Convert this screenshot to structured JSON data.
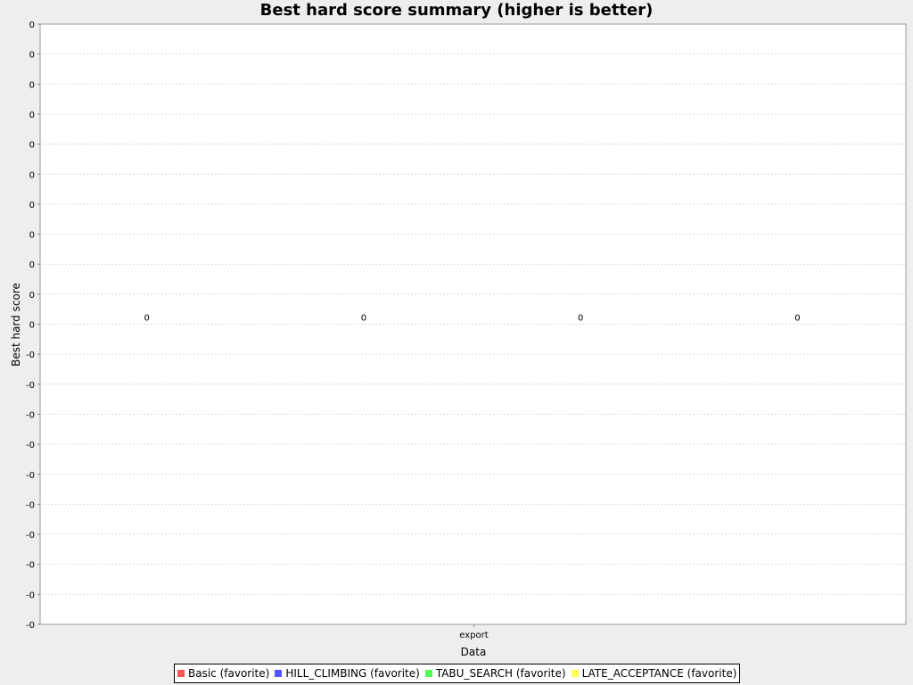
{
  "chart_data": {
    "type": "bar",
    "title": "Best hard score summary (higher is better)",
    "xlabel": "Data",
    "ylabel": "Best hard score",
    "categories": [
      "export"
    ],
    "series": [
      {
        "name": "Basic (favorite)",
        "values": [
          0
        ],
        "color": "#ff5555"
      },
      {
        "name": "HILL_CLIMBING (favorite)",
        "values": [
          0
        ],
        "color": "#5555ff"
      },
      {
        "name": "TABU_SEARCH (favorite)",
        "values": [
          0
        ],
        "color": "#55ff55"
      },
      {
        "name": "LATE_ACCEPTANCE (favorite)",
        "values": [
          0
        ],
        "color": "#ffff55"
      }
    ],
    "data_labels": [
      "0",
      "0",
      "0",
      "0"
    ],
    "y_tick_labels": [
      "0",
      "0",
      "0",
      "0",
      "0",
      "0",
      "0",
      "0",
      "0",
      "0",
      "0",
      "-0",
      "-0",
      "-0",
      "-0",
      "-0",
      "-0",
      "-0",
      "-0",
      "-0",
      "-0"
    ],
    "grid": true,
    "legend_position": "bottom"
  }
}
